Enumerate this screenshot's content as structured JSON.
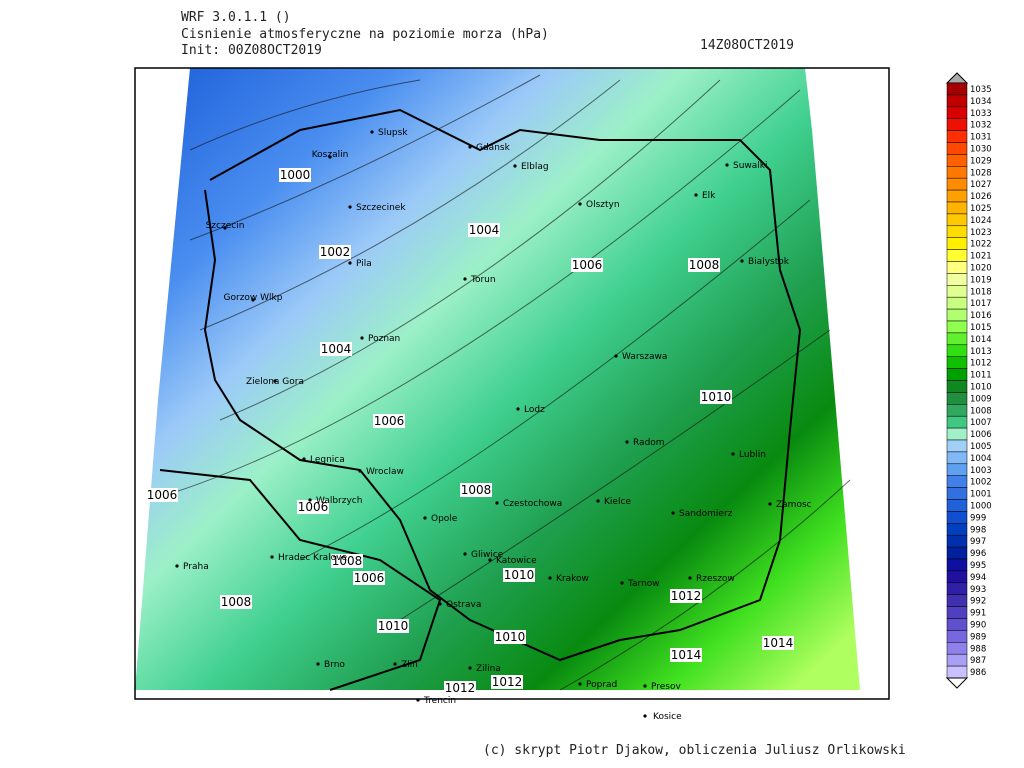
{
  "header": {
    "model": "WRF 3.0.1.1 ()",
    "title": "Cisnienie atmosferyczne na poziomie morza (hPa)",
    "init": "Init: 00Z08OCT2019",
    "valid": "14Z08OCT2019"
  },
  "map": {
    "cities": [
      "Slupsk",
      "Gdansk",
      "Koszalin",
      "Elblag",
      "Suwalki",
      "Olsztyn",
      "Elk",
      "Szczecinek",
      "Szczecin",
      "Bialystok",
      "Pila",
      "Torun",
      "Gorzow Wlkp",
      "Poznan",
      "Warszawa",
      "Zielona Gora",
      "Lodz",
      "Radom",
      "Lublin",
      "Legnica",
      "Wroclaw",
      "Walbrzych",
      "Kielce",
      "Czestochowa",
      "Zamosc",
      "Opole",
      "Sandomierz",
      "Praha",
      "Hradec Kralove",
      "Gliwice",
      "Katowice",
      "Krakow",
      "Tarnow",
      "Rzeszow",
      "Ostrava",
      "Brno",
      "Zlin",
      "Zilina",
      "Poprad",
      "Presov",
      "Trencin",
      "Kosice"
    ],
    "contour_labels": [
      "1000",
      "1004",
      "1002",
      "1006",
      "1008",
      "1004",
      "1010",
      "1006",
      "1006",
      "1008",
      "1006",
      "1008",
      "1006",
      "1010",
      "1008",
      "1012",
      "1010",
      "1010",
      "1014",
      "1014",
      "1012",
      "1012"
    ]
  },
  "colorbar": {
    "levels": [
      1035,
      1034,
      1033,
      1032,
      1031,
      1030,
      1029,
      1028,
      1027,
      1026,
      1025,
      1024,
      1023,
      1022,
      1021,
      1020,
      1019,
      1018,
      1017,
      1016,
      1015,
      1014,
      1013,
      1012,
      1011,
      1010,
      1009,
      1008,
      1007,
      1006,
      1005,
      1004,
      1003,
      1002,
      1001,
      1000,
      999,
      998,
      997,
      996,
      995,
      994,
      993,
      992,
      991,
      990,
      989,
      988,
      987,
      986
    ],
    "colors": [
      "#a50000",
      "#c00000",
      "#d80000",
      "#ee1000",
      "#ff3000",
      "#ff4800",
      "#ff6000",
      "#ff7800",
      "#ff8c00",
      "#ffa000",
      "#ffb400",
      "#ffc800",
      "#ffdc00",
      "#fff000",
      "#ffff30",
      "#ffff80",
      "#f0ffa0",
      "#e0ff90",
      "#c8ff80",
      "#b0ff70",
      "#90ff50",
      "#60f030",
      "#30e010",
      "#10c000",
      "#00a000",
      "#108820",
      "#209040",
      "#30a860",
      "#40c880",
      "#a0f0c8",
      "#a0d0f8",
      "#80b8f8",
      "#60a0f0",
      "#4080e8",
      "#3070e0",
      "#2060d8",
      "#1050d0",
      "#0040c0",
      "#0030b0",
      "#0020a0",
      "#1010a0",
      "#2010a0",
      "#3020a8",
      "#4030b0",
      "#5040c0",
      "#6050d0",
      "#7868e0",
      "#9080ec",
      "#a8a0f4",
      "#c8c0ff"
    ]
  },
  "footer": "(c) skrypt Piotr Djakow, obliczenia Juliusz Orlikowski"
}
